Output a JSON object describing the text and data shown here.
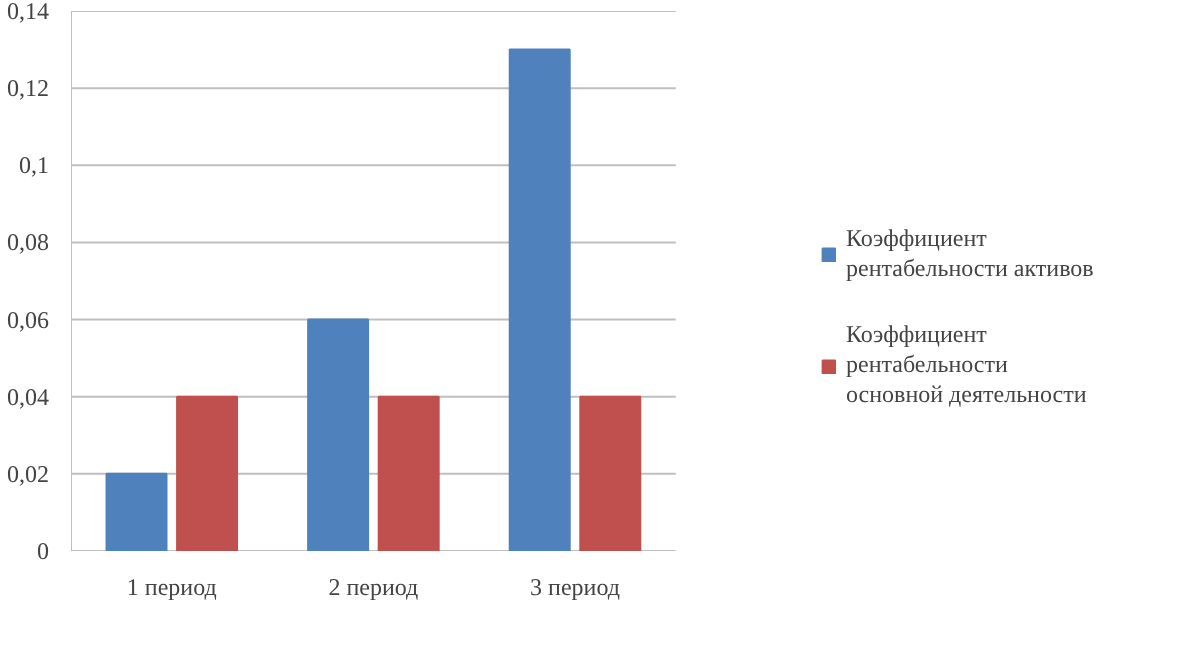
{
  "chart_data": {
    "type": "bar",
    "categories": [
      "1 период",
      "2 период",
      "3 период"
    ],
    "series": [
      {
        "name": "Коэффициент рентабельности активов",
        "color": "#4f81bd",
        "values": [
          0.02,
          0.06,
          0.13
        ]
      },
      {
        "name": "Коэффициент рентабельности основной деятельности",
        "color": "#c0504d",
        "values": [
          0.04,
          0.04,
          0.04
        ]
      }
    ],
    "ylim": [
      0,
      0.14
    ],
    "yticks": [
      0,
      {
        "value": 0.02,
        "label": "0,02"
      },
      {
        "value": 0.04,
        "label": "0,04"
      },
      {
        "value": 0.06,
        "label": "0,06"
      },
      {
        "value": 0.08,
        "label": "0,08"
      },
      {
        "value": 0.1,
        "label": "0,1"
      },
      {
        "value": 0.12,
        "label": "0,12"
      },
      {
        "value": 0.14,
        "label": "0,14"
      }
    ],
    "grid": "y",
    "legend": "right"
  }
}
